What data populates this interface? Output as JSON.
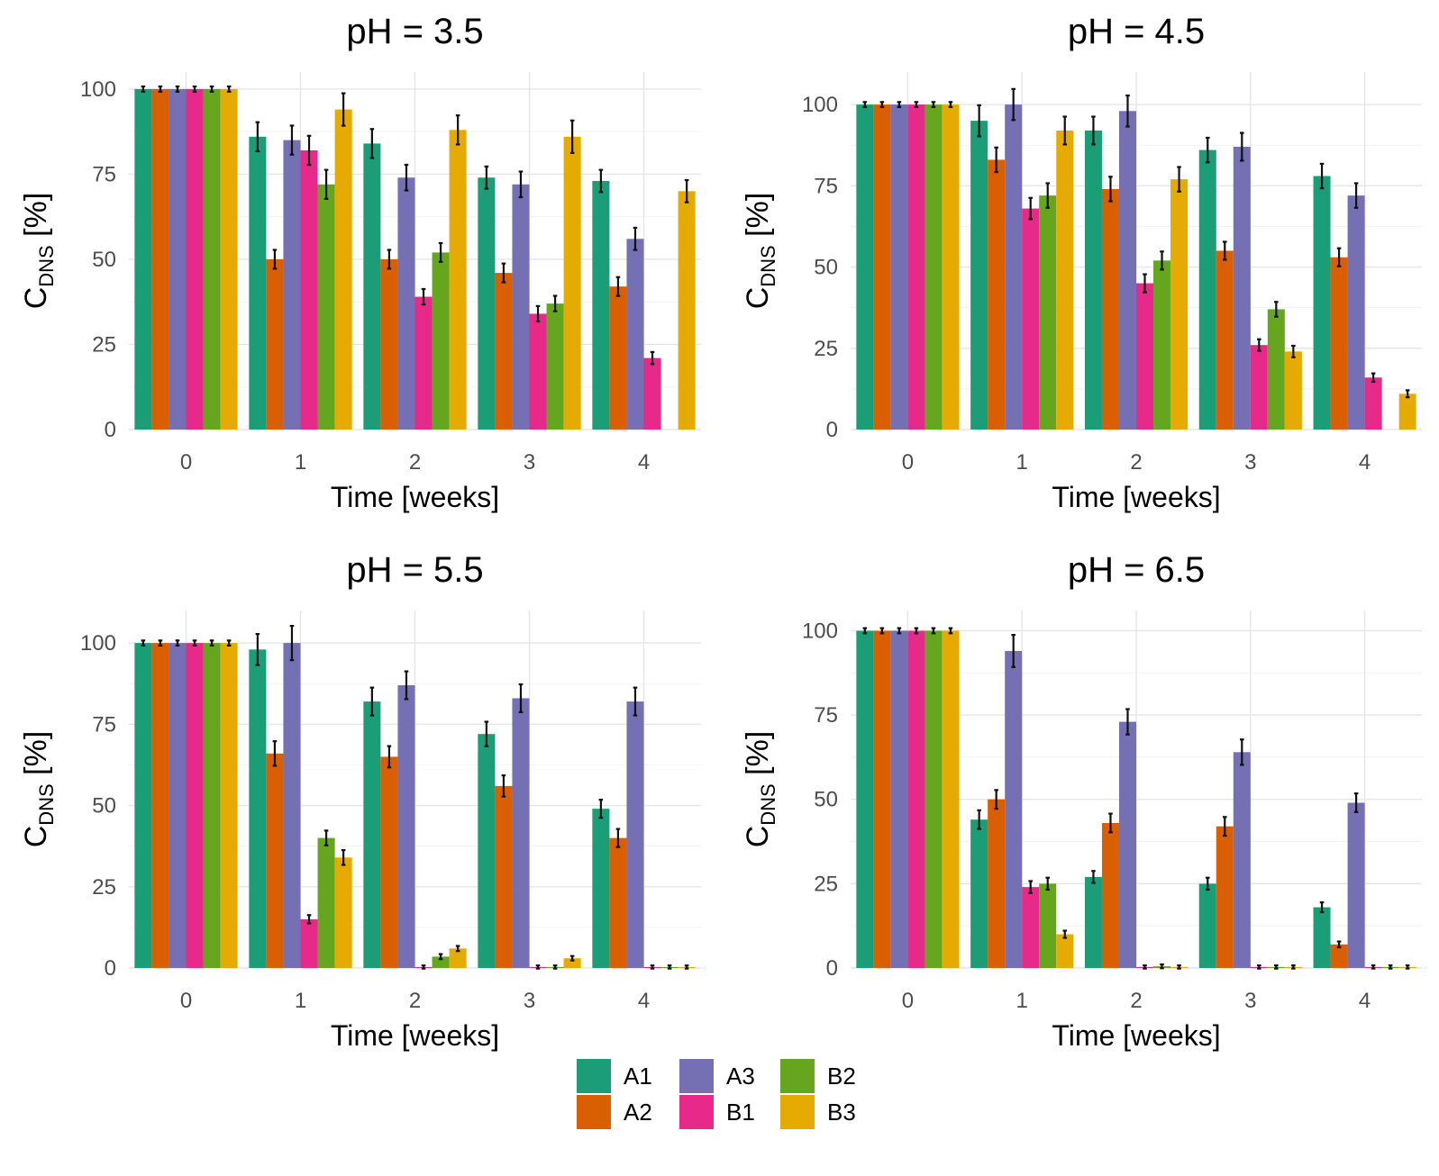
{
  "chart_data": [
    {
      "type": "bar",
      "title": "pH = 3.5",
      "xlabel": "Time [weeks]",
      "ylabel": {
        "main": "C",
        "sub": "DNS",
        "unit": " [%]"
      },
      "categories": [
        "0",
        "1",
        "2",
        "3",
        "4"
      ],
      "yticks": [
        "0",
        "25",
        "50",
        "75",
        "100"
      ],
      "ylim": [
        0,
        105
      ],
      "series": [
        {
          "name": "A1",
          "values": [
            100,
            86,
            84,
            74,
            73
          ],
          "errors": [
            0.5,
            4,
            4,
            3,
            3
          ]
        },
        {
          "name": "A2",
          "values": [
            100,
            50,
            50,
            46,
            42
          ],
          "errors": [
            0.5,
            2.5,
            2.5,
            2.5,
            2.5
          ]
        },
        {
          "name": "A3",
          "values": [
            100,
            85,
            74,
            72,
            56
          ],
          "errors": [
            0.5,
            4,
            3.5,
            3.5,
            3
          ]
        },
        {
          "name": "B1",
          "values": [
            100,
            82,
            39,
            34,
            21
          ],
          "errors": [
            0.5,
            4,
            2,
            2,
            1.5
          ]
        },
        {
          "name": "B2",
          "values": [
            100,
            72,
            52,
            37,
            0
          ],
          "errors": [
            0.5,
            4,
            2.5,
            2,
            0
          ]
        },
        {
          "name": "B3",
          "values": [
            100,
            94,
            88,
            86,
            70
          ],
          "errors": [
            0.5,
            4.5,
            4,
            4.5,
            3
          ]
        }
      ]
    },
    {
      "type": "bar",
      "title": "pH = 4.5",
      "xlabel": "Time [weeks]",
      "ylabel": {
        "main": "C",
        "sub": "DNS",
        "unit": " [%]"
      },
      "categories": [
        "0",
        "1",
        "2",
        "3",
        "4"
      ],
      "yticks": [
        "0",
        "25",
        "50",
        "75",
        "100"
      ],
      "ylim": [
        0,
        110
      ],
      "series": [
        {
          "name": "A1",
          "values": [
            100,
            95,
            92,
            86,
            78
          ],
          "errors": [
            0.5,
            4.5,
            4,
            3.5,
            3.5
          ]
        },
        {
          "name": "A2",
          "values": [
            100,
            83,
            74,
            55,
            53
          ],
          "errors": [
            0.5,
            3.5,
            3.5,
            2.5,
            2.5
          ]
        },
        {
          "name": "A3",
          "values": [
            100,
            100,
            98,
            87,
            72
          ],
          "errors": [
            0.5,
            4.5,
            4.5,
            4,
            3.5
          ]
        },
        {
          "name": "B1",
          "values": [
            100,
            68,
            45,
            26,
            16
          ],
          "errors": [
            0.5,
            3,
            2.5,
            1.5,
            1
          ]
        },
        {
          "name": "B2",
          "values": [
            100,
            72,
            52,
            37,
            0
          ],
          "errors": [
            0.5,
            3.5,
            2.5,
            2,
            0
          ]
        },
        {
          "name": "B3",
          "values": [
            100,
            92,
            77,
            24,
            11
          ],
          "errors": [
            0.5,
            4,
            3.5,
            1.5,
            0.8
          ]
        }
      ]
    },
    {
      "type": "bar",
      "title": "pH = 5.5",
      "xlabel": "Time [weeks]",
      "ylabel": {
        "main": "C",
        "sub": "DNS",
        "unit": " [%]"
      },
      "categories": [
        "0",
        "1",
        "2",
        "3",
        "4"
      ],
      "yticks": [
        "0",
        "25",
        "50",
        "75",
        "100"
      ],
      "ylim": [
        0,
        110
      ],
      "series": [
        {
          "name": "A1",
          "values": [
            100,
            98,
            82,
            72,
            49
          ],
          "errors": [
            0.5,
            4.5,
            4,
            3.5,
            2.5
          ]
        },
        {
          "name": "A2",
          "values": [
            100,
            66,
            65,
            56,
            40
          ],
          "errors": [
            0.5,
            3.5,
            3,
            3,
            2.5
          ]
        },
        {
          "name": "A3",
          "values": [
            100,
            100,
            87,
            83,
            82
          ],
          "errors": [
            0.5,
            5,
            4,
            4,
            4
          ]
        },
        {
          "name": "B1",
          "values": [
            100,
            15,
            0.3,
            0.3,
            0.3
          ],
          "errors": [
            0.5,
            1,
            0.2,
            0.2,
            0.2
          ]
        },
        {
          "name": "B2",
          "values": [
            100,
            40,
            3.5,
            0.3,
            0.3
          ],
          "errors": [
            0.5,
            2,
            0.5,
            0.2,
            0.2
          ]
        },
        {
          "name": "B3",
          "values": [
            100,
            34,
            6,
            3,
            0.3
          ],
          "errors": [
            0.5,
            2,
            0.5,
            0.4,
            0.2
          ]
        }
      ]
    },
    {
      "type": "bar",
      "title": "pH = 6.5",
      "xlabel": "Time [weeks]",
      "ylabel": {
        "main": "C",
        "sub": "DNS",
        "unit": " [%]"
      },
      "categories": [
        "0",
        "1",
        "2",
        "3",
        "4"
      ],
      "yticks": [
        "0",
        "25",
        "50",
        "75",
        "100"
      ],
      "ylim": [
        0,
        106
      ],
      "series": [
        {
          "name": "A1",
          "values": [
            100,
            44,
            27,
            25,
            18
          ],
          "errors": [
            0.5,
            2.5,
            1.5,
            1.5,
            1.2
          ]
        },
        {
          "name": "A2",
          "values": [
            100,
            50,
            43,
            42,
            7
          ],
          "errors": [
            0.5,
            2.5,
            2.5,
            2.5,
            0.6
          ]
        },
        {
          "name": "A3",
          "values": [
            100,
            94,
            73,
            64,
            49
          ],
          "errors": [
            0.5,
            4.5,
            3.5,
            3.5,
            2.5
          ]
        },
        {
          "name": "B1",
          "values": [
            100,
            24,
            0.3,
            0.3,
            0.3
          ],
          "errors": [
            0.5,
            1.5,
            0.2,
            0.2,
            0.2
          ]
        },
        {
          "name": "B2",
          "values": [
            100,
            25,
            0.5,
            0.3,
            0.3
          ],
          "errors": [
            0.5,
            1.5,
            0.3,
            0.2,
            0.2
          ]
        },
        {
          "name": "B3",
          "values": [
            100,
            10,
            0.3,
            0.3,
            0.3
          ],
          "errors": [
            0.5,
            0.8,
            0.2,
            0.2,
            0.2
          ]
        }
      ]
    }
  ],
  "legend": [
    {
      "name": "A1",
      "color": "#1b9e77"
    },
    {
      "name": "A2",
      "color": "#d95f02"
    },
    {
      "name": "A3",
      "color": "#7570b3"
    },
    {
      "name": "B1",
      "color": "#e7298a"
    },
    {
      "name": "B2",
      "color": "#66a61e"
    },
    {
      "name": "B3",
      "color": "#e6ab02"
    }
  ]
}
